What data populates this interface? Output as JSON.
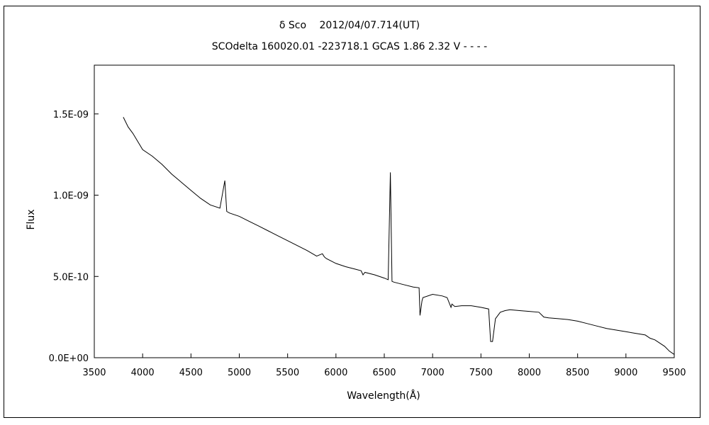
{
  "chart_data": {
    "type": "line",
    "title": "δ Sco　 2012/04/07.714(UT)",
    "subtitle": "SCOdelta 160020.01 -223718.1 GCAS 1.86 2.32 V - - - -",
    "xlabel": "Wavelength(Å)",
    "ylabel": "Flux",
    "xlim": [
      3500,
      9500
    ],
    "ylim": [
      0,
      1.8e-09
    ],
    "x_ticks": [
      3500,
      4000,
      4500,
      5000,
      5500,
      6000,
      6500,
      7000,
      7500,
      8000,
      8500,
      9000,
      9500
    ],
    "x_tick_labels": [
      "3500",
      "4000",
      "4500",
      "5000",
      "5500",
      "6000",
      "6500",
      "7000",
      "7500",
      "8000",
      "8500",
      "9000",
      "9500"
    ],
    "y_ticks": [
      0,
      5e-10,
      1e-09,
      1.5e-09
    ],
    "y_tick_labels": [
      "0.0E+00",
      "5.0E-10",
      "1.0E-09",
      "1.5E-09"
    ],
    "grid": false,
    "legend": "none",
    "line_color": "#000000",
    "series": [
      {
        "x": [
          3800,
          3850,
          3900,
          3950,
          4000,
          4100,
          4200,
          4300,
          4400,
          4500,
          4600,
          4700,
          4800,
          4850,
          4870,
          4900,
          5000,
          5100,
          5200,
          5300,
          5400,
          5500,
          5600,
          5700,
          5800,
          5860,
          5880,
          5900,
          6000,
          6100,
          6200,
          6260,
          6280,
          6300,
          6400,
          6500,
          6540,
          6563,
          6580,
          6600,
          6700,
          6800,
          6860,
          6870,
          6890,
          6900,
          7000,
          7100,
          7150,
          7190,
          7200,
          7230,
          7300,
          7400,
          7500,
          7580,
          7600,
          7620,
          7650,
          7700,
          7750,
          7800,
          7900,
          8000,
          8100,
          8150,
          8200,
          8300,
          8400,
          8500,
          8600,
          8700,
          8800,
          8900,
          9000,
          9100,
          9200,
          9250,
          9300,
          9400,
          9450,
          9500
        ],
        "y": [
          1.48e-09,
          1.42e-09,
          1.38e-09,
          1.33e-09,
          1.28e-09,
          1.24e-09,
          1.19e-09,
          1.13e-09,
          1.08e-09,
          1.03e-09,
          9.8e-10,
          9.4e-10,
          9.2e-10,
          1.09e-09,
          9e-10,
          8.9e-10,
          8.7e-10,
          8.4e-10,
          8.1e-10,
          7.8e-10,
          7.5e-10,
          7.2e-10,
          6.9e-10,
          6.6e-10,
          6.25e-10,
          6.4e-10,
          6.2e-10,
          6.1e-10,
          5.8e-10,
          5.6e-10,
          5.45e-10,
          5.35e-10,
          5.1e-10,
          5.25e-10,
          5.1e-10,
          4.9e-10,
          4.8e-10,
          1.14e-09,
          4.7e-10,
          4.65e-10,
          4.5e-10,
          4.35e-10,
          4.3e-10,
          2.6e-10,
          3.5e-10,
          3.7e-10,
          3.9e-10,
          3.8e-10,
          3.7e-10,
          3.1e-10,
          3.3e-10,
          3.15e-10,
          3.2e-10,
          3.2e-10,
          3.1e-10,
          3e-10,
          1e-10,
          1e-10,
          2.4e-10,
          2.8e-10,
          2.9e-10,
          2.95e-10,
          2.9e-10,
          2.85e-10,
          2.8e-10,
          2.5e-10,
          2.45e-10,
          2.4e-10,
          2.35e-10,
          2.25e-10,
          2.1e-10,
          1.95e-10,
          1.8e-10,
          1.7e-10,
          1.6e-10,
          1.5e-10,
          1.4e-10,
          1.2e-10,
          1.1e-10,
          7e-11,
          4e-11,
          2e-11
        ]
      }
    ]
  }
}
